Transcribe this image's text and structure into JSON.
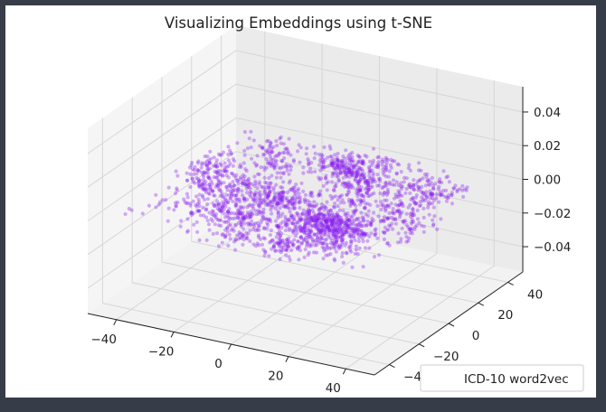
{
  "chart_data": {
    "type": "scatter",
    "projection": "3d",
    "title": "Visualizing Embeddings using t-SNE",
    "xlabel": "",
    "ylabel": "",
    "zlabel": "",
    "xlim": [
      -50,
      50
    ],
    "ylim": [
      -50,
      50
    ],
    "zlim": [
      -0.055,
      0.055
    ],
    "xticks": [
      -40,
      -20,
      0,
      20,
      40
    ],
    "yticks": [
      -40,
      -20,
      0,
      20,
      40
    ],
    "zticks": [
      -0.04,
      -0.02,
      0.0,
      0.02,
      0.04
    ],
    "xtick_labels": [
      "−40",
      "−20",
      "0",
      "20",
      "40"
    ],
    "ytick_labels": [
      "−40",
      "−20",
      "0",
      "20",
      "40"
    ],
    "ztick_labels": [
      "−0.04",
      "−0.02",
      "0.00",
      "0.02",
      "0.04"
    ],
    "grid": true,
    "legend_position": "lower-right",
    "series": [
      {
        "name": "ICD-10 word2vec",
        "color": "#8a1cf0",
        "z_value": 0,
        "point_count": 2200,
        "x_range": [
          -45,
          45
        ],
        "y_range": [
          -45,
          45
        ]
      }
    ]
  }
}
